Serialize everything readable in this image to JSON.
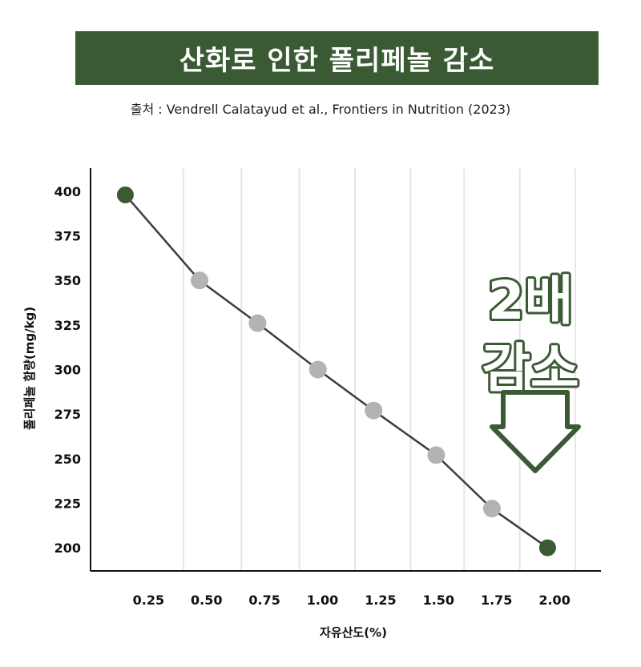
{
  "header": {
    "title": "산화로 인한 폴리페놀 감소",
    "source": "출처 : Vendrell Calatayud et al., Frontiers in Nutrition (2023)"
  },
  "callout": {
    "line1": "2배",
    "line2": "감소"
  },
  "colors": {
    "accent": "#3a5a34",
    "marker_mid": "#b3b3b3",
    "line": "#3c3c3c",
    "grid": "#e6e6e6"
  },
  "chart_data": {
    "type": "line",
    "title": "",
    "xlabel": "자유산도(%)",
    "ylabel": "폴리페놀 함량(mg/kg)",
    "x_ticks": [
      "0.25",
      "0.50",
      "0.75",
      "1.00",
      "1.25",
      "1.50",
      "1.75",
      "2.00"
    ],
    "y_ticks": [
      "400",
      "375",
      "350",
      "325",
      "300",
      "275",
      "250",
      "225",
      "200"
    ],
    "xlim": [
      0.0,
      2.2
    ],
    "ylim": [
      187,
      413
    ],
    "grid": "vertical",
    "series": [
      {
        "x": [
          0.15,
          0.47,
          0.72,
          0.98,
          1.22,
          1.49,
          1.73,
          1.97
        ],
        "y": [
          398,
          350,
          326,
          300,
          277,
          252,
          222,
          200
        ],
        "highlight_endpoints": true
      }
    ]
  }
}
